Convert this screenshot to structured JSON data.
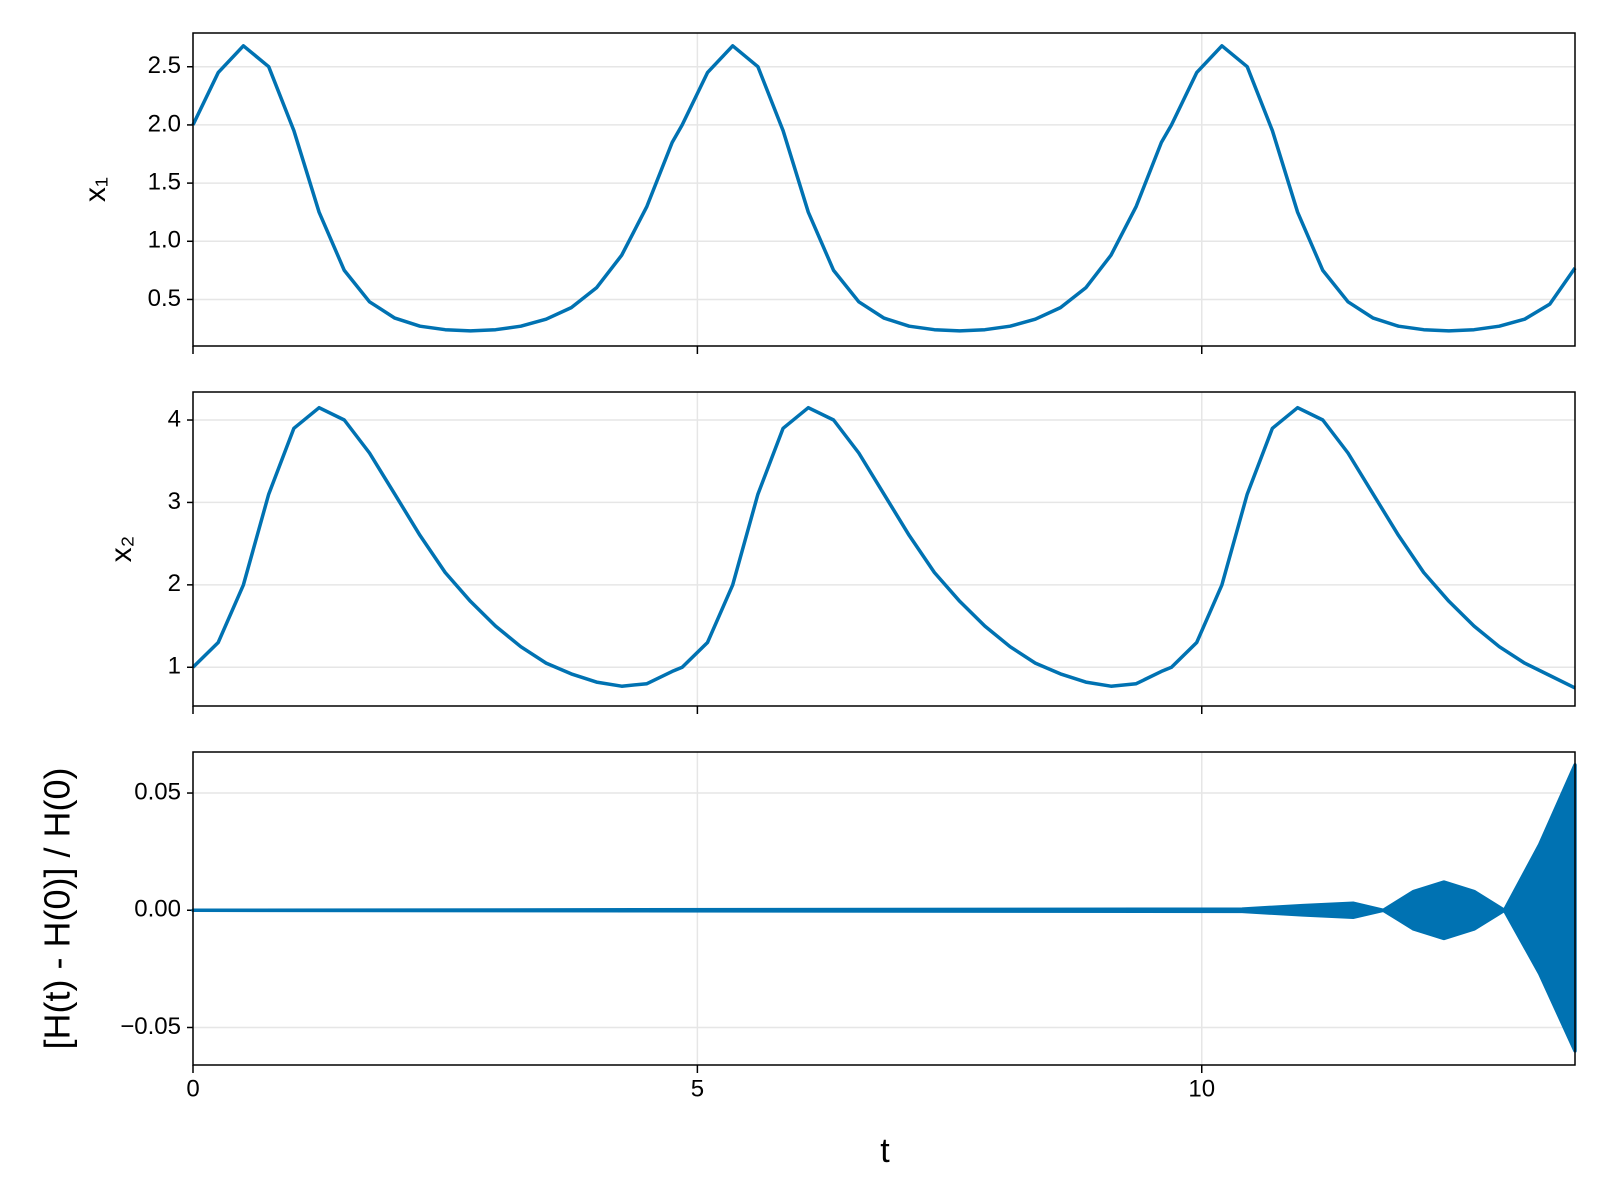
{
  "chart_data": [
    {
      "type": "line",
      "ylabel": "x₁",
      "color": "#0072b2",
      "grid": true,
      "xlim": [
        0,
        13.7
      ],
      "xticks": [
        0,
        5,
        10
      ],
      "ylim": [
        0.1,
        2.79
      ],
      "yticks": [
        0.5,
        {
          "value": 1,
          "label": "1.0"
        },
        1.5,
        {
          "value": 2,
          "label": "2.0"
        },
        2.5
      ],
      "x": [
        0,
        0.25,
        0.5,
        0.75,
        1,
        1.25,
        1.5,
        1.75,
        2,
        2.25,
        2.5,
        2.75,
        3,
        3.25,
        3.5,
        3.75,
        4,
        4.25,
        4.5,
        4.75,
        4.85,
        5.1,
        5.35,
        5.6,
        5.85,
        6.1,
        6.35,
        6.6,
        6.85,
        7.1,
        7.35,
        7.6,
        7.85,
        8.1,
        8.35,
        8.6,
        8.85,
        9.1,
        9.35,
        9.6,
        9.7,
        9.95,
        10.2,
        10.45,
        10.7,
        10.95,
        11.2,
        11.45,
        11.7,
        11.95,
        12.2,
        12.45,
        12.7,
        12.95,
        13.2,
        13.45,
        13.7
      ],
      "values": [
        2.0,
        2.45,
        2.68,
        2.5,
        1.95,
        1.25,
        0.75,
        0.48,
        0.34,
        0.27,
        0.24,
        0.23,
        0.24,
        0.27,
        0.33,
        0.43,
        0.6,
        0.88,
        1.3,
        1.85,
        2.0,
        2.45,
        2.68,
        2.5,
        1.95,
        1.25,
        0.75,
        0.48,
        0.34,
        0.27,
        0.24,
        0.23,
        0.24,
        0.27,
        0.33,
        0.43,
        0.6,
        0.88,
        1.3,
        1.85,
        2.0,
        2.45,
        2.68,
        2.5,
        1.95,
        1.25,
        0.75,
        0.48,
        0.34,
        0.27,
        0.24,
        0.23,
        0.24,
        0.27,
        0.33,
        0.46,
        0.77
      ]
    },
    {
      "type": "line",
      "ylabel": "x₂",
      "color": "#0072b2",
      "grid": true,
      "xlim": [
        0,
        13.7
      ],
      "xticks": [
        0,
        5,
        10
      ],
      "ylim": [
        0.53,
        4.34
      ],
      "yticks": [
        1,
        2,
        3,
        4
      ],
      "x": [
        0,
        0.25,
        0.5,
        0.75,
        1,
        1.25,
        1.5,
        1.75,
        2,
        2.25,
        2.5,
        2.75,
        3,
        3.25,
        3.5,
        3.75,
        4,
        4.25,
        4.5,
        4.75,
        4.85,
        5.1,
        5.35,
        5.6,
        5.85,
        6.1,
        6.35,
        6.6,
        6.85,
        7.1,
        7.35,
        7.6,
        7.85,
        8.1,
        8.35,
        8.6,
        8.85,
        9.1,
        9.35,
        9.6,
        9.7,
        9.95,
        10.2,
        10.45,
        10.7,
        10.95,
        11.2,
        11.45,
        11.7,
        11.95,
        12.2,
        12.45,
        12.7,
        12.95,
        13.2,
        13.45,
        13.7
      ],
      "values": [
        1.0,
        1.3,
        2.0,
        3.1,
        3.9,
        4.15,
        4.0,
        3.6,
        3.1,
        2.6,
        2.15,
        1.8,
        1.5,
        1.25,
        1.05,
        0.92,
        0.82,
        0.77,
        0.8,
        0.95,
        1.0,
        1.3,
        2.0,
        3.1,
        3.9,
        4.15,
        4.0,
        3.6,
        3.1,
        2.6,
        2.15,
        1.8,
        1.5,
        1.25,
        1.05,
        0.92,
        0.82,
        0.77,
        0.8,
        0.95,
        1.0,
        1.3,
        2.0,
        3.1,
        3.9,
        4.15,
        4.0,
        3.6,
        3.1,
        2.6,
        2.15,
        1.8,
        1.5,
        1.25,
        1.05,
        0.9,
        0.75
      ]
    },
    {
      "type": "band",
      "ylabel": "[H(t) - H(0)] / H(0)",
      "xlabel": "t",
      "color": "#0072b2",
      "grid": true,
      "xlim": [
        0,
        13.7
      ],
      "xticks": [
        0,
        5,
        10
      ],
      "ylim": [
        -0.066,
        0.0675
      ],
      "yticks": [
        {
          "value": -0.05,
          "label": "−0.05"
        },
        {
          "value": 0,
          "label": "0.00"
        },
        0.05
      ],
      "x": [
        0,
        10.4,
        11.0,
        11.5,
        11.8,
        12.1,
        12.4,
        12.7,
        13.0,
        13.35,
        13.7
      ],
      "upper": [
        0,
        0.0005,
        0.002,
        0.003,
        0,
        0.008,
        0.012,
        0.008,
        0,
        0.028,
        0.062
      ],
      "lower": [
        0,
        -0.0005,
        -0.002,
        -0.003,
        0,
        -0.008,
        -0.012,
        -0.008,
        0,
        -0.027,
        -0.06
      ]
    }
  ]
}
